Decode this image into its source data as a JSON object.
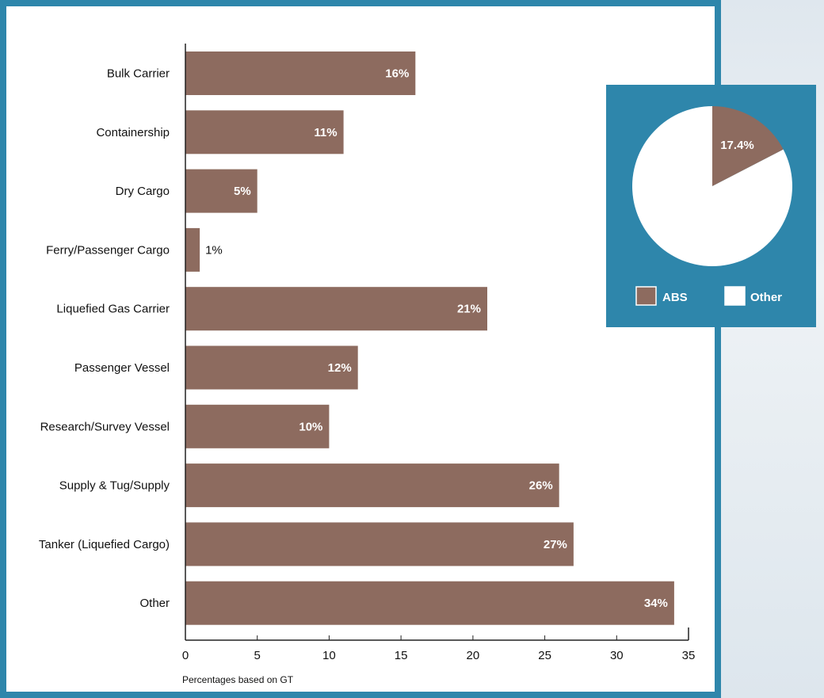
{
  "colors": {
    "frame": "#2e86ab",
    "bar": "#8d6b5f",
    "pie_panel": "#2e86ab",
    "pie_other": "#ffffff",
    "axis": "#222222"
  },
  "chart_data": [
    {
      "type": "bar",
      "orientation": "horizontal",
      "categories": [
        "Bulk Carrier",
        "Containership",
        "Dry Cargo",
        "Ferry/Passenger Cargo",
        "Liquefied Gas Carrier",
        "Passenger Vessel",
        "Research/Survey Vessel",
        "Supply & Tug/Supply",
        "Tanker (Liquefied Cargo)",
        "Other"
      ],
      "values": [
        16,
        11,
        5,
        1,
        21,
        12,
        10,
        26,
        27,
        34
      ],
      "data_labels": [
        "16%",
        "11%",
        "5%",
        "1%",
        "21%",
        "12%",
        "10%",
        "26%",
        "27%",
        "34%"
      ],
      "x_ticks": [
        "0",
        "5",
        "10",
        "15",
        "20",
        "25",
        "30",
        "35"
      ],
      "xlim": [
        0,
        35
      ],
      "xlabel": "Percentages based on GT",
      "grid": false
    },
    {
      "type": "pie",
      "slices": [
        {
          "name": "ABS",
          "value": 17.4,
          "label": "17.4%"
        },
        {
          "name": "Other",
          "value": 82.6,
          "label": ""
        }
      ],
      "legend": [
        "ABS",
        "Other"
      ],
      "legend_position": "bottom"
    }
  ]
}
